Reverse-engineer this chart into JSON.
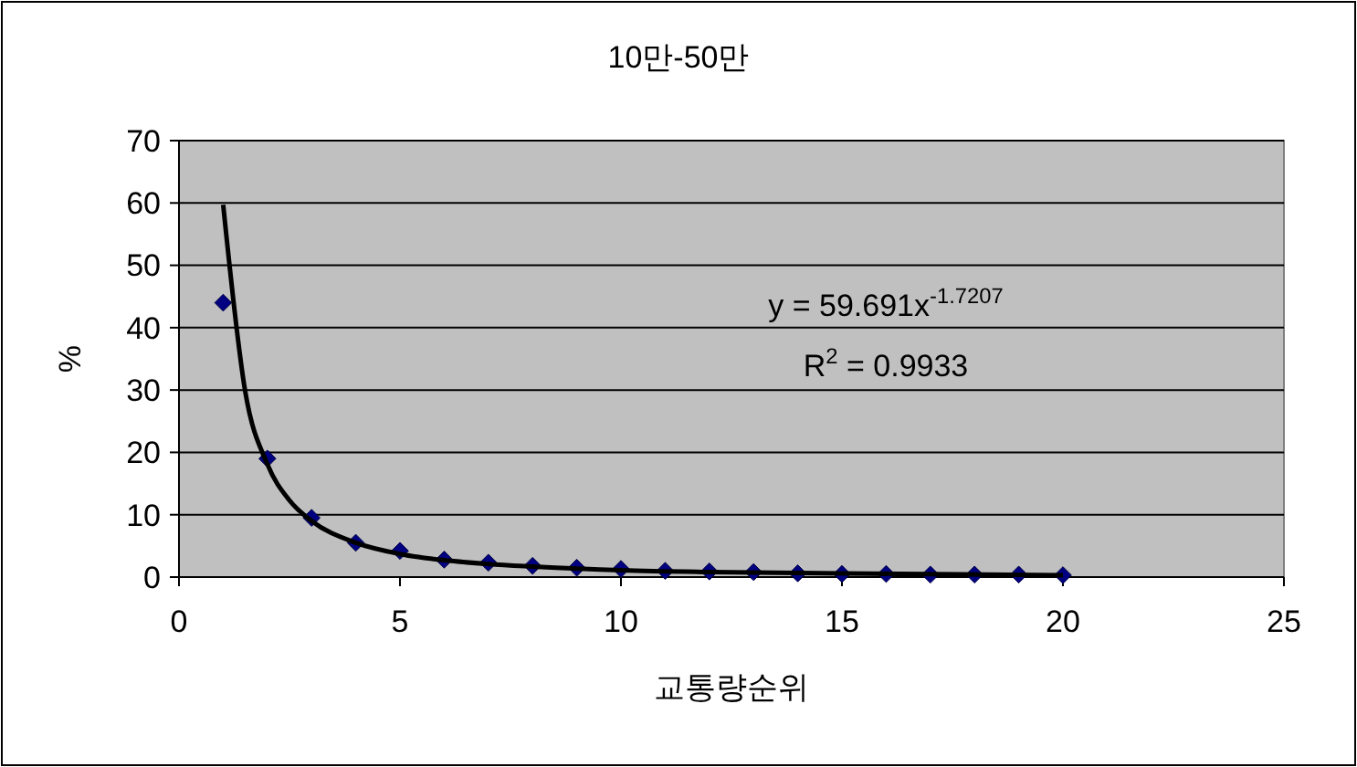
{
  "chart_data": {
    "type": "scatter",
    "title": "10만-50만",
    "xlabel": "교통량순위",
    "ylabel": "%",
    "xlim": [
      0,
      25
    ],
    "xticks": [
      0,
      5,
      10,
      15,
      20,
      25
    ],
    "ylim": [
      0,
      70
    ],
    "yticks": [
      0,
      10,
      20,
      30,
      40,
      50,
      60,
      70
    ],
    "grid": "y",
    "series": [
      {
        "type": "scatter",
        "color": "#000080",
        "marker": "diamond",
        "x": [
          1,
          2,
          3,
          4,
          5,
          6,
          7,
          8,
          9,
          10,
          11,
          12,
          13,
          14,
          15,
          16,
          17,
          18,
          19,
          20
        ],
        "values": [
          44,
          19,
          9.5,
          5.5,
          4.2,
          2.8,
          2.3,
          1.8,
          1.5,
          1.3,
          1.0,
          0.9,
          0.8,
          0.6,
          0.5,
          0.5,
          0.4,
          0.4,
          0.4,
          0.3
        ]
      },
      {
        "type": "line",
        "color": "#000000",
        "marker": "none",
        "line_style": "solid",
        "x": [
          1,
          1.5,
          2,
          2.5,
          3,
          4,
          5,
          6,
          7,
          8,
          10,
          12,
          15,
          20
        ],
        "values": [
          59.7,
          29.7,
          18.1,
          12.3,
          9.0,
          5.5,
          3.7,
          2.7,
          2.1,
          1.7,
          1.1,
          0.8,
          0.6,
          0.3
        ]
      }
    ],
    "annotations": [
      "y = 59.691x$^{-1.7207}$",
      "R$^{2}$ = 0.9933"
    ]
  }
}
